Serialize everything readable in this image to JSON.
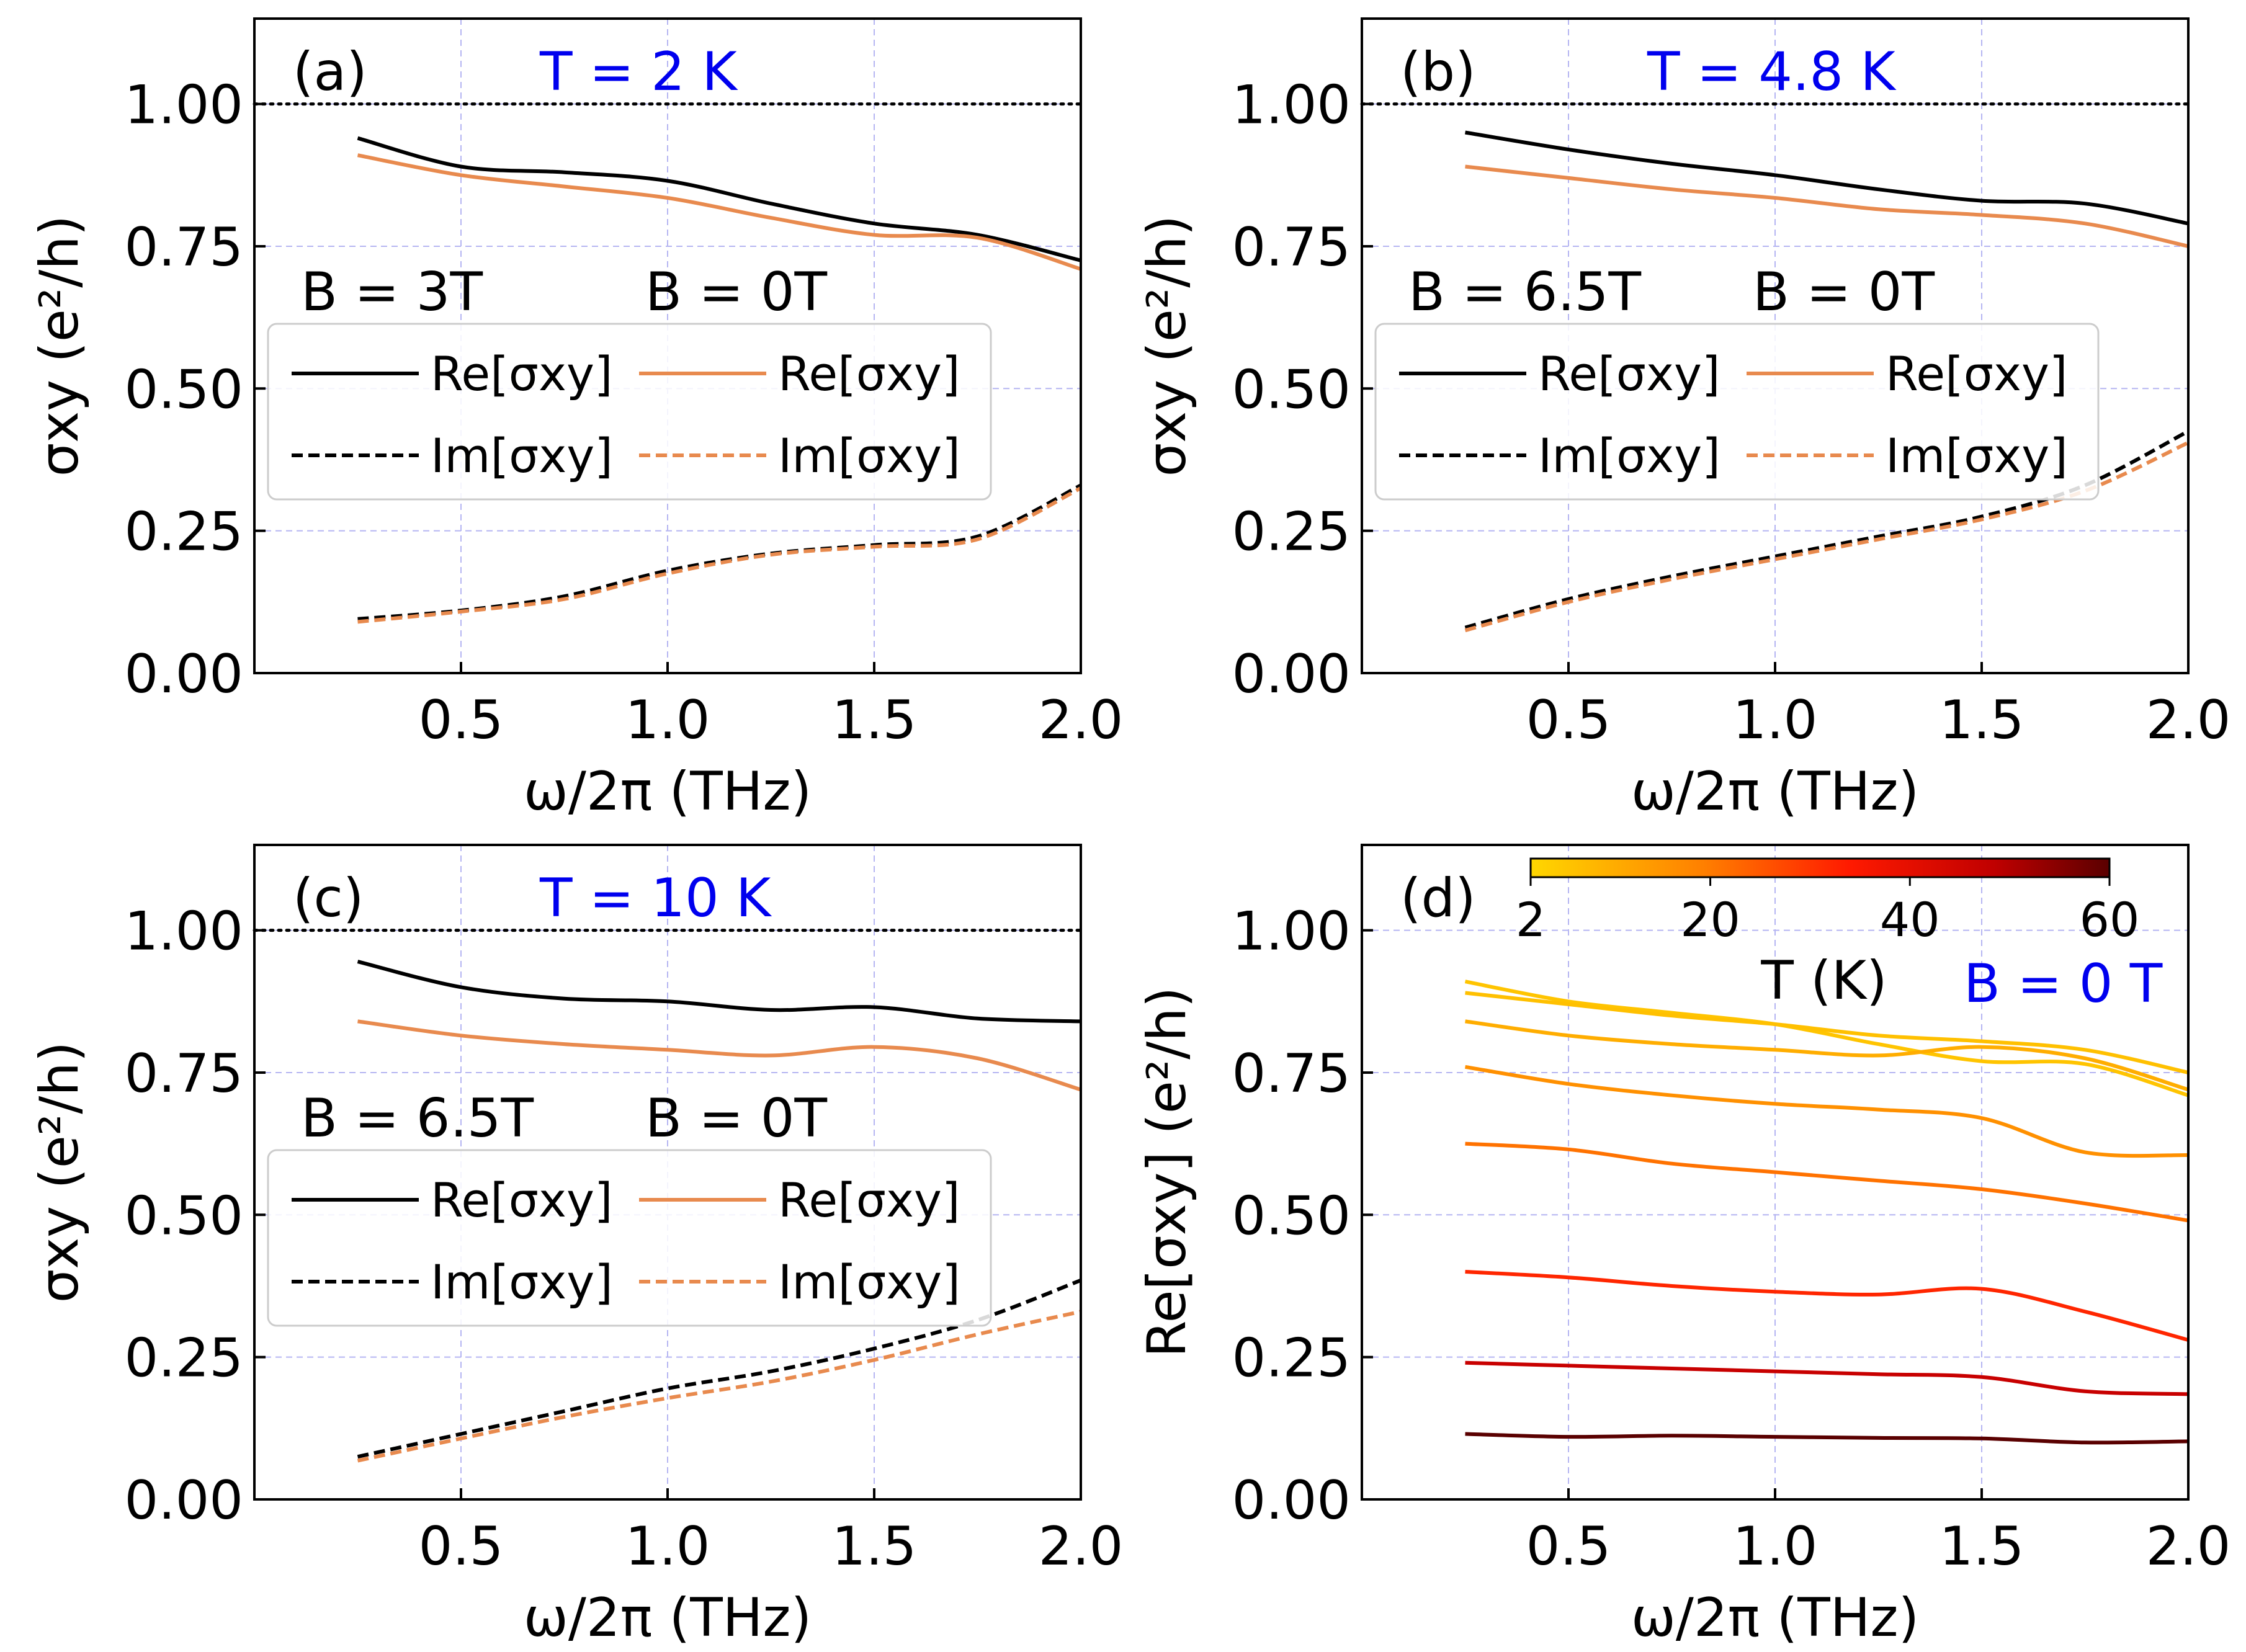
{
  "chart_data": [
    {
      "panel": "(a)",
      "type": "line",
      "annotation": "T = 2 K",
      "xlabel": "ω/2π (THz)",
      "ylabel": "σxy (e²/h)",
      "xlim": [
        0.0,
        2.0
      ],
      "ylim": [
        0.0,
        1.15
      ],
      "xticks": [
        "0.5",
        "1.0",
        "1.5",
        "2.0"
      ],
      "yticks": [
        "0.00",
        "0.25",
        "0.50",
        "0.75",
        "1.00"
      ],
      "reference_line": 1.0,
      "legend": {
        "col_headers": [
          "B = 3T",
          "B = 0T"
        ],
        "entries": [
          "Re[σxy]",
          "Im[σxy]",
          "Re[σxy]",
          "Im[σxy]"
        ]
      },
      "x": [
        0.25,
        0.5,
        0.75,
        1.0,
        1.25,
        1.5,
        1.75,
        2.0
      ],
      "series": [
        {
          "name": "B = 3T Re[σxy]",
          "color": "#000000",
          "dash": "solid",
          "values": [
            0.94,
            0.89,
            0.88,
            0.865,
            0.825,
            0.79,
            0.77,
            0.725
          ]
        },
        {
          "name": "B = 0T Re[σxy]",
          "color": "#e88a4e",
          "dash": "solid",
          "values": [
            0.91,
            0.875,
            0.855,
            0.835,
            0.8,
            0.77,
            0.765,
            0.71
          ]
        },
        {
          "name": "B = 3T Im[σxy]",
          "color": "#000000",
          "dash": "dashed",
          "values": [
            0.095,
            0.11,
            0.135,
            0.18,
            0.21,
            0.225,
            0.24,
            0.33
          ]
        },
        {
          "name": "B = 0T Im[σxy]",
          "color": "#e88a4e",
          "dash": "dashed",
          "values": [
            0.09,
            0.108,
            0.13,
            0.175,
            0.208,
            0.222,
            0.235,
            0.325
          ]
        }
      ]
    },
    {
      "panel": "(b)",
      "type": "line",
      "annotation": "T = 4.8 K",
      "xlabel": "ω/2π (THz)",
      "ylabel": "σxy (e²/h)",
      "xlim": [
        0.0,
        2.0
      ],
      "ylim": [
        0.0,
        1.15
      ],
      "xticks": [
        "0.5",
        "1.0",
        "1.5",
        "2.0"
      ],
      "yticks": [
        "0.00",
        "0.25",
        "0.50",
        "0.75",
        "1.00"
      ],
      "reference_line": 1.0,
      "legend": {
        "col_headers": [
          "B = 6.5T",
          "B = 0T"
        ],
        "entries": [
          "Re[σxy]",
          "Im[σxy]",
          "Re[σxy]",
          "Im[σxy]"
        ]
      },
      "x": [
        0.25,
        0.5,
        0.75,
        1.0,
        1.25,
        1.5,
        1.75,
        2.0
      ],
      "series": [
        {
          "name": "B = 6.5T Re[σxy]",
          "color": "#000000",
          "dash": "solid",
          "values": [
            0.95,
            0.92,
            0.895,
            0.875,
            0.85,
            0.83,
            0.825,
            0.79
          ]
        },
        {
          "name": "B = 0T Re[σxy]",
          "color": "#e88a4e",
          "dash": "solid",
          "values": [
            0.89,
            0.87,
            0.85,
            0.835,
            0.815,
            0.805,
            0.79,
            0.75
          ]
        },
        {
          "name": "B = 6.5T Im[σxy]",
          "color": "#000000",
          "dash": "dashed",
          "values": [
            0.08,
            0.13,
            0.17,
            0.205,
            0.24,
            0.275,
            0.33,
            0.425
          ]
        },
        {
          "name": "B = 0T Im[σxy]",
          "color": "#e88a4e",
          "dash": "dashed",
          "values": [
            0.075,
            0.125,
            0.165,
            0.2,
            0.235,
            0.27,
            0.32,
            0.405
          ]
        }
      ]
    },
    {
      "panel": "(c)",
      "type": "line",
      "annotation": "T = 10 K",
      "xlabel": "ω/2π (THz)",
      "ylabel": "σxy (e²/h)",
      "xlim": [
        0.0,
        2.0
      ],
      "ylim": [
        0.0,
        1.15
      ],
      "xticks": [
        "0.5",
        "1.0",
        "1.5",
        "2.0"
      ],
      "yticks": [
        "0.00",
        "0.25",
        "0.50",
        "0.75",
        "1.00"
      ],
      "reference_line": 1.0,
      "legend": {
        "col_headers": [
          "B = 6.5T",
          "B = 0T"
        ],
        "entries": [
          "Re[σxy]",
          "Im[σxy]",
          "Re[σxy]",
          "Im[σxy]"
        ]
      },
      "x": [
        0.25,
        0.5,
        0.75,
        1.0,
        1.25,
        1.5,
        1.75,
        2.0
      ],
      "series": [
        {
          "name": "B = 6.5T Re[σxy]",
          "color": "#000000",
          "dash": "solid",
          "values": [
            0.945,
            0.9,
            0.88,
            0.875,
            0.86,
            0.865,
            0.845,
            0.84
          ]
        },
        {
          "name": "B = 0T Re[σxy]",
          "color": "#e88a4e",
          "dash": "solid",
          "values": [
            0.84,
            0.815,
            0.8,
            0.79,
            0.78,
            0.795,
            0.775,
            0.72
          ]
        },
        {
          "name": "B = 6.5T Im[σxy]",
          "color": "#000000",
          "dash": "dashed",
          "values": [
            0.075,
            0.115,
            0.155,
            0.195,
            0.225,
            0.265,
            0.315,
            0.385
          ]
        },
        {
          "name": "B = 0T Im[σxy]",
          "color": "#e88a4e",
          "dash": "dashed",
          "values": [
            0.068,
            0.107,
            0.145,
            0.178,
            0.207,
            0.245,
            0.29,
            0.33
          ]
        }
      ]
    },
    {
      "panel": "(d)",
      "type": "line",
      "annotation": "B = 0 T",
      "xlabel": "ω/2π (THz)",
      "ylabel": "Re[σxy] (e²/h)",
      "xlim": [
        0.0,
        2.0
      ],
      "ylim": [
        0.0,
        1.15
      ],
      "xticks": [
        "0.5",
        "1.0",
        "1.5",
        "2.0"
      ],
      "yticks": [
        "0.00",
        "0.25",
        "0.50",
        "0.75",
        "1.00"
      ],
      "colorbar": {
        "title": "T (K)",
        "ticks": [
          "2",
          "20",
          "40",
          "60"
        ],
        "range": [
          2,
          60
        ],
        "colors": [
          "#ffd700",
          "#ff7f00",
          "#ff1a00",
          "#c00000",
          "#5a0000"
        ]
      },
      "x": [
        0.25,
        0.5,
        0.75,
        1.0,
        1.25,
        1.5,
        1.75,
        2.0
      ],
      "series": [
        {
          "name": "T = 2 K",
          "color": "#ffc400",
          "values": [
            0.91,
            0.875,
            0.855,
            0.835,
            0.8,
            0.77,
            0.765,
            0.71
          ]
        },
        {
          "name": "T = 4.8 K",
          "color": "#ffc000",
          "values": [
            0.89,
            0.87,
            0.85,
            0.835,
            0.815,
            0.805,
            0.79,
            0.75
          ]
        },
        {
          "name": "T = 10 K",
          "color": "#ffad00",
          "values": [
            0.84,
            0.815,
            0.8,
            0.79,
            0.78,
            0.795,
            0.775,
            0.72
          ]
        },
        {
          "name": "T = 15 K",
          "color": "#ff9000",
          "values": [
            0.76,
            0.73,
            0.71,
            0.695,
            0.685,
            0.67,
            0.61,
            0.605
          ]
        },
        {
          "name": "T = 20 K",
          "color": "#ff7200",
          "values": [
            0.625,
            0.615,
            0.59,
            0.575,
            0.56,
            0.545,
            0.52,
            0.49
          ]
        },
        {
          "name": "T = 30 K",
          "color": "#ff2600",
          "values": [
            0.4,
            0.39,
            0.375,
            0.365,
            0.36,
            0.37,
            0.33,
            0.28
          ]
        },
        {
          "name": "T = 40 K",
          "color": "#c80000",
          "values": [
            0.24,
            0.235,
            0.23,
            0.225,
            0.22,
            0.215,
            0.19,
            0.185
          ]
        },
        {
          "name": "T = 60 K",
          "color": "#5a0000",
          "values": [
            0.115,
            0.11,
            0.112,
            0.11,
            0.108,
            0.107,
            0.1,
            0.102
          ]
        }
      ]
    }
  ]
}
